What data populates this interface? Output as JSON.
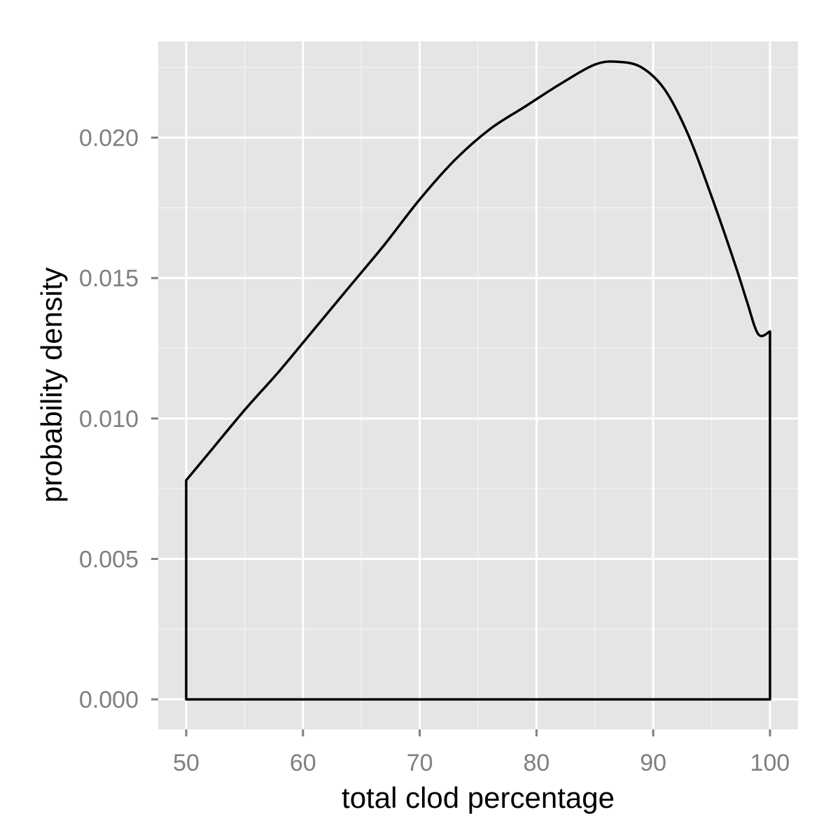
{
  "chart_data": {
    "type": "area",
    "title": "",
    "xlabel": "total clod percentage",
    "ylabel": "probability density",
    "xlim": [
      47.6,
      102.4
    ],
    "ylim": [
      -0.00107,
      0.02343
    ],
    "x_ticks": [
      50,
      60,
      70,
      80,
      90,
      100
    ],
    "x_tick_labels": [
      "50",
      "60",
      "70",
      "80",
      "90",
      "100"
    ],
    "y_ticks": [
      0.0,
      0.005,
      0.01,
      0.015,
      0.02
    ],
    "y_tick_labels": [
      "0.000",
      "0.005",
      "0.010",
      "0.015",
      "0.020"
    ],
    "grid": true,
    "legend": "none",
    "series": [
      {
        "x": [
          50,
          52,
          55,
          58,
          61,
          64,
          67,
          70,
          73,
          76,
          79,
          82,
          85,
          87,
          89,
          91,
          93,
          95,
          97,
          98,
          99,
          100
        ],
        "y": [
          0.0078,
          0.0088,
          0.0103,
          0.0117,
          0.0132,
          0.0147,
          0.0162,
          0.0178,
          0.0192,
          0.0203,
          0.0211,
          0.0219,
          0.0226,
          0.0227,
          0.0225,
          0.0217,
          0.0201,
          0.0179,
          0.0155,
          0.0142,
          0.013,
          0.0131
        ]
      }
    ],
    "colors": {
      "panel": "#e5e5e5",
      "grid_major": "#ffffff",
      "grid_minor": "#f2f2f2",
      "line": "#000000",
      "tick_text": "#7f7f7f"
    }
  }
}
